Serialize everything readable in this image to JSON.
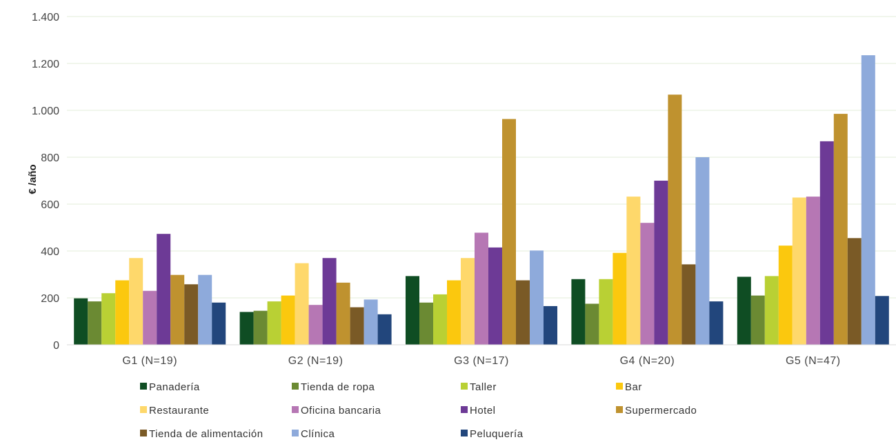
{
  "chart_data": {
    "type": "bar",
    "ylabel": "€ /año",
    "ylim": [
      0,
      1400
    ],
    "yticks": [
      0,
      200,
      400,
      600,
      800,
      1000,
      1200,
      1400
    ],
    "ytick_labels": [
      "0",
      "200",
      "400",
      "600",
      "800",
      "1.000",
      "1.200",
      "1.400"
    ],
    "grid": true,
    "legend_position": "bottom",
    "categories": [
      "G1 (N=19)",
      "G2 (N=19)",
      "G3 (N=17)",
      "G4 (N=20)",
      "G5 (N=47)"
    ],
    "series": [
      {
        "name": "Panadería",
        "color": "#0f4d23",
        "values": [
          198,
          140,
          293,
          280,
          290
        ]
      },
      {
        "name": "Tienda de ropa",
        "color": "#6b8a33",
        "values": [
          185,
          145,
          180,
          175,
          210
        ]
      },
      {
        "name": "Taller",
        "color": "#b9d034",
        "values": [
          220,
          185,
          215,
          280,
          293
        ]
      },
      {
        "name": "Bar",
        "color": "#fbc80e",
        "values": [
          275,
          210,
          275,
          392,
          423
        ]
      },
      {
        "name": "Restaurante",
        "color": "#fed86b",
        "values": [
          370,
          348,
          370,
          632,
          628
        ]
      },
      {
        "name": "Oficina bancaria",
        "color": "#b677b4",
        "values": [
          230,
          170,
          478,
          520,
          632
        ]
      },
      {
        "name": "Hotel",
        "color": "#6d3a96",
        "values": [
          473,
          370,
          415,
          700,
          868
        ]
      },
      {
        "name": "Supermercado",
        "color": "#bf922f",
        "values": [
          298,
          265,
          963,
          1067,
          985
        ]
      },
      {
        "name": "Tienda de alimentación",
        "color": "#7a5a26",
        "values": [
          258,
          160,
          275,
          343,
          455
        ]
      },
      {
        "name": "Clínica",
        "color": "#8eaadb",
        "values": [
          298,
          193,
          402,
          800,
          1235
        ]
      },
      {
        "name": "Peluquería",
        "color": "#22467c",
        "values": [
          180,
          130,
          165,
          185,
          208
        ]
      }
    ],
    "gridline_color": "#e3ecd8"
  }
}
